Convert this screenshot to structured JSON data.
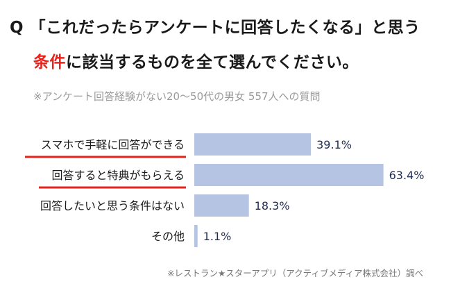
{
  "header": {
    "q_mark": "Q",
    "question_line1": "「これだったらアンケートに回答したくなる」と思う",
    "question_accent": "条件",
    "question_line2_rest": "に該当するものを全て選んでください。"
  },
  "subtitle": "※アンケート回答経験がない20～50代の男女 557人への質問",
  "footnote": "※レストラン★スターアプリ（アクティブメディア株式会社）調べ",
  "colors": {
    "bar": "#b4c4e2",
    "accent": "#e8231c",
    "value_text": "#1f2d55"
  },
  "chart_data": {
    "type": "bar",
    "orientation": "horizontal",
    "categories": [
      "スマホで手軽に回答ができる",
      "回答すると特典がもらえる",
      "回答したいと思う条件はない",
      "その他"
    ],
    "values": [
      39.1,
      63.4,
      18.3,
      1.1
    ],
    "value_labels": [
      "39.1%",
      "63.4%",
      "18.3%",
      "1.1%"
    ],
    "highlighted": [
      true,
      true,
      false,
      false
    ],
    "xlim": [
      0,
      100
    ],
    "grid": false,
    "legend": "none"
  }
}
